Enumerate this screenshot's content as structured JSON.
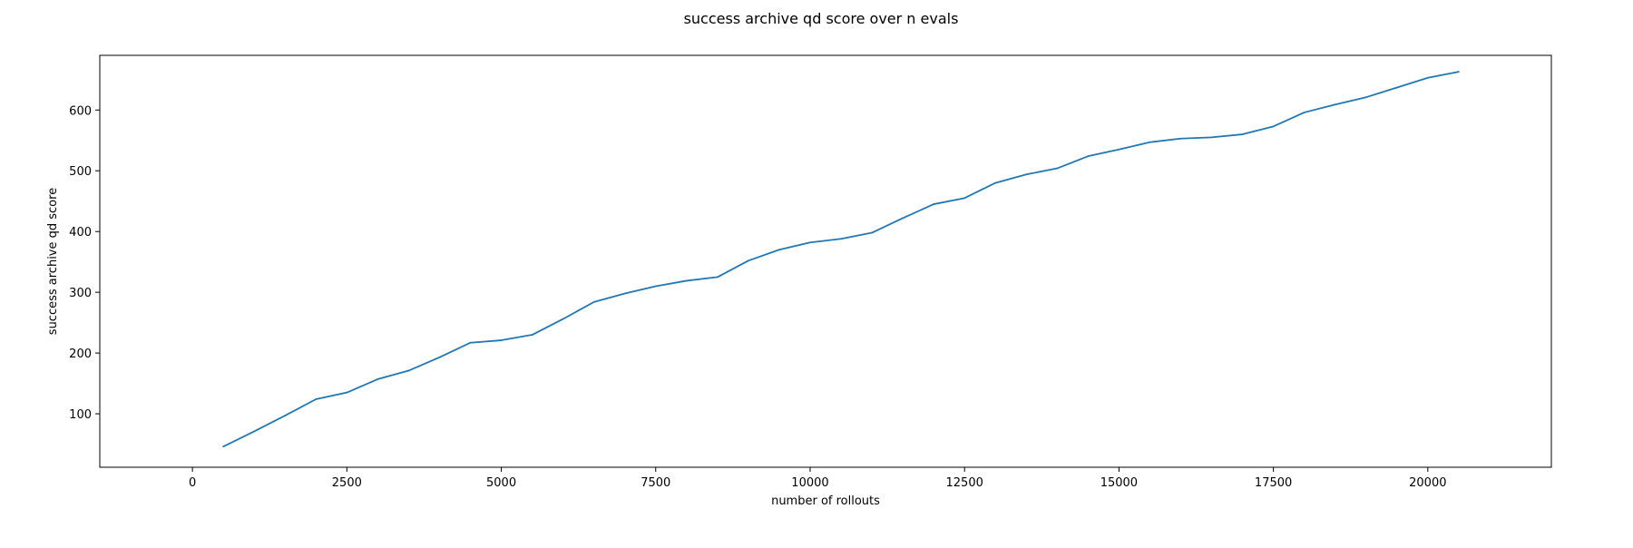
{
  "chart_data": {
    "type": "line",
    "title": "success archive qd score over n evals",
    "xlabel": "number of rollouts",
    "ylabel": "success archive qd score",
    "xlim": [
      -1500,
      22000
    ],
    "ylim": [
      12,
      690
    ],
    "xticks": [
      0,
      2500,
      5000,
      7500,
      10000,
      12500,
      15000,
      17500,
      20000
    ],
    "yticks": [
      100,
      200,
      300,
      400,
      500,
      600
    ],
    "grid": false,
    "legend": "none",
    "series": [
      {
        "color": "#1f77b4",
        "x": [
          500,
          1000,
          1500,
          2000,
          2500,
          3000,
          3500,
          4000,
          4500,
          5000,
          5500,
          6000,
          6500,
          7000,
          7500,
          8000,
          8500,
          9000,
          9500,
          10000,
          10500,
          11000,
          11500,
          12000,
          12500,
          13000,
          13500,
          14000,
          14500,
          15000,
          15500,
          16000,
          16500,
          17000,
          17500,
          18000,
          18500,
          19000,
          19500,
          20000,
          20500
        ],
        "y": [
          46,
          71,
          97,
          124,
          135,
          157,
          171,
          193,
          217,
          221,
          230,
          256,
          284,
          298,
          310,
          319,
          325,
          352,
          370,
          382,
          388,
          398,
          422,
          445,
          455,
          480,
          494,
          504,
          524,
          535,
          547,
          553,
          555,
          560,
          573,
          596,
          609,
          621,
          637,
          653,
          663
        ]
      }
    ]
  }
}
